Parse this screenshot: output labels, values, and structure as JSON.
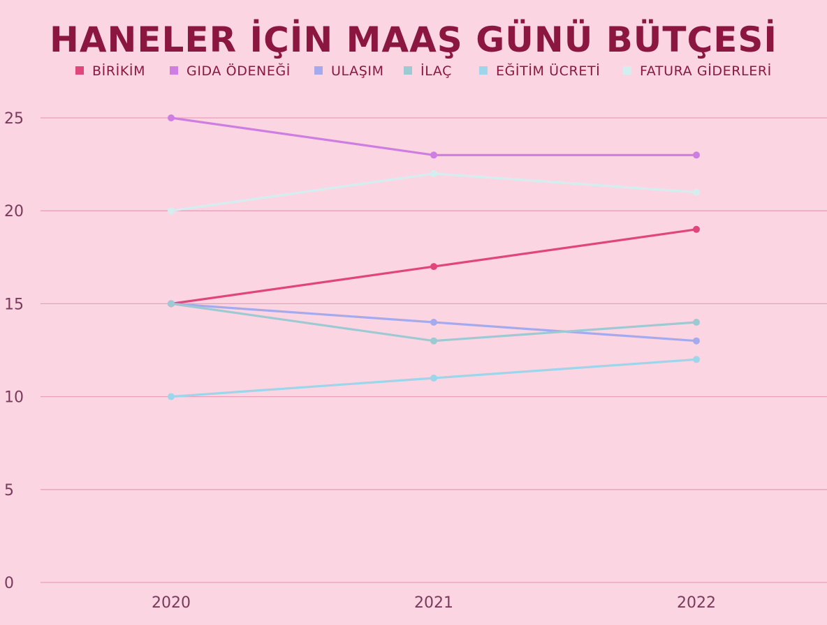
{
  "chart_data": {
    "type": "line",
    "title": "HANELER İÇİN MAAŞ GÜNÜ BÜTÇESİ",
    "xlabel": "",
    "ylabel": "",
    "categories": [
      "2020",
      "2021",
      "2022"
    ],
    "ylim": [
      0,
      25
    ],
    "yticks": [
      0,
      5,
      10,
      15,
      20,
      25
    ],
    "grid": true,
    "legend_position": "top",
    "series": [
      {
        "name": "Birikim",
        "color": "#e0457b",
        "values": [
          15,
          17,
          19
        ]
      },
      {
        "name": "Gıda ödeneği",
        "color": "#cd7ee0",
        "values": [
          25,
          23,
          23
        ]
      },
      {
        "name": "Ulaşım",
        "color": "#a5aaee",
        "values": [
          15,
          14,
          13
        ]
      },
      {
        "name": "İlaç",
        "color": "#9dc9d3",
        "values": [
          15,
          13,
          14
        ]
      },
      {
        "name": "Eğitim ücreti",
        "color": "#9dd5ea",
        "values": [
          10,
          11,
          12
        ]
      },
      {
        "name": "Fatura giderleri",
        "color": "#d4eef0",
        "values": [
          20,
          22,
          21
        ]
      }
    ]
  }
}
